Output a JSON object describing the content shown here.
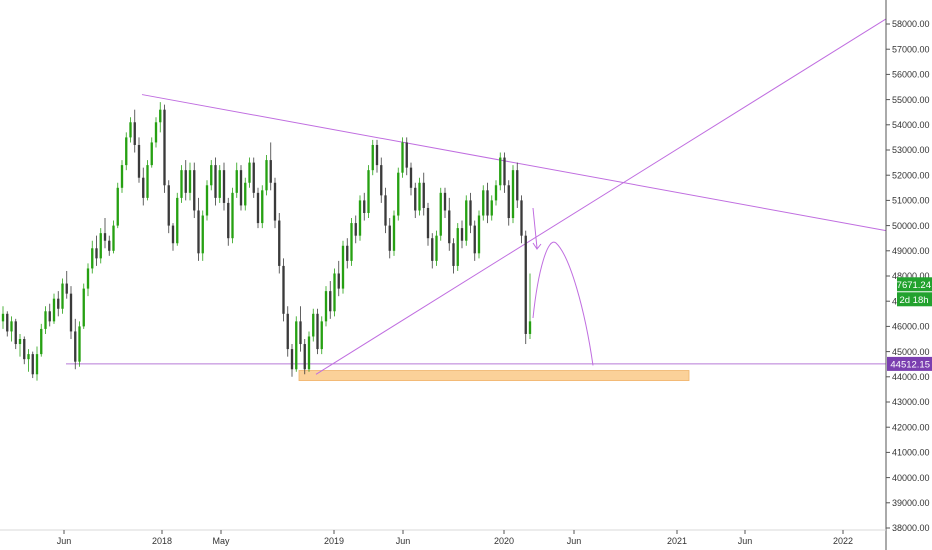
{
  "colors": {
    "up": "#26a012",
    "down": "#3a3a3a",
    "trendline": "#c06ee0",
    "support_line": "#b77ad8",
    "support_zone": "#fbd199",
    "support_zone_border": "#f1b46b",
    "last_price_bg": "#22a22e",
    "level_bg": "#7b3fb0",
    "axis_text": "#333333",
    "axis_line": "#555555"
  },
  "chart_data": {
    "type": "candlestick",
    "x_axis": {
      "ticks": [
        "Jun",
        "2018",
        "May",
        "2019",
        "Jun",
        "2020",
        "Jun",
        "2021",
        "Jun",
        "2022"
      ]
    },
    "y_axis": {
      "range": [
        37800,
        58600
      ],
      "ticks": [
        "38000.00",
        "39000.00",
        "40000.00",
        "41000.00",
        "42000.00",
        "43000.00",
        "44000.00",
        "45000.00",
        "46000.00",
        "47000.00",
        "48000.00",
        "49000.00",
        "50000.00",
        "51000.00",
        "52000.00",
        "53000.00",
        "54000.00",
        "55000.00",
        "56000.00",
        "57000.00",
        "58000.00"
      ]
    },
    "price_tags": {
      "last_price": "47671.24",
      "countdown": "2d 18h",
      "level": "44512.15"
    },
    "annotations": {
      "descending_trendline": [
        55200,
        49800
      ],
      "ascending_trendline": [
        44100,
        58200
      ],
      "horizontal_support": 44512.15,
      "support_zone": [
        43850,
        44250
      ],
      "projected_path": [
        49300,
        44450
      ]
    },
    "candles": [
      [
        46200,
        46800,
        45900,
        46500
      ],
      [
        46500,
        46600,
        45600,
        45800
      ],
      [
        45800,
        46400,
        45400,
        46200
      ],
      [
        46200,
        46300,
        45100,
        45300
      ],
      [
        45300,
        45700,
        44800,
        45500
      ],
      [
        45500,
        45600,
        44500,
        44700
      ],
      [
        44700,
        45100,
        44200,
        44900
      ],
      [
        44900,
        45000,
        43950,
        44100
      ],
      [
        44100,
        45200,
        43850,
        44900
      ],
      [
        44900,
        46100,
        44800,
        45900
      ],
      [
        45900,
        46800,
        45700,
        46600
      ],
      [
        46600,
        46900,
        46000,
        46200
      ],
      [
        46200,
        47300,
        46100,
        47100
      ],
      [
        47100,
        47400,
        46400,
        46700
      ],
      [
        46700,
        47900,
        46500,
        47700
      ],
      [
        47700,
        48200,
        47100,
        47300
      ],
      [
        47300,
        47600,
        45500,
        45800
      ],
      [
        45800,
        46300,
        44300,
        44600
      ],
      [
        44600,
        46200,
        44400,
        46000
      ],
      [
        46000,
        47700,
        45900,
        47500
      ],
      [
        47500,
        48500,
        47200,
        48300
      ],
      [
        48300,
        49400,
        48100,
        49100
      ],
      [
        49100,
        49600,
        48400,
        48700
      ],
      [
        48700,
        49900,
        48500,
        49700
      ],
      [
        49700,
        50300,
        49100,
        49400
      ],
      [
        49400,
        49600,
        48800,
        49000
      ],
      [
        49000,
        50200,
        48900,
        50000
      ],
      [
        50000,
        51700,
        49900,
        51500
      ],
      [
        51500,
        52600,
        51300,
        52400
      ],
      [
        52400,
        53700,
        52200,
        53500
      ],
      [
        53500,
        54300,
        53300,
        54100
      ],
      [
        54100,
        54600,
        52900,
        53200
      ],
      [
        53200,
        53500,
        51700,
        51900
      ],
      [
        51900,
        52300,
        50800,
        51100
      ],
      [
        51100,
        52600,
        51000,
        52400
      ],
      [
        52400,
        53500,
        52300,
        53300
      ],
      [
        53300,
        54300,
        53100,
        54100
      ],
      [
        54100,
        54900,
        53700,
        54600
      ],
      [
        54600,
        54800,
        51300,
        51600
      ],
      [
        51600,
        51800,
        49700,
        50000
      ],
      [
        50000,
        50100,
        49000,
        49300
      ],
      [
        49300,
        51300,
        49200,
        51100
      ],
      [
        51100,
        52400,
        50900,
        52200
      ],
      [
        52200,
        52600,
        51000,
        51300
      ],
      [
        51300,
        52500,
        51000,
        52200
      ],
      [
        52200,
        52500,
        50300,
        50600
      ],
      [
        50600,
        51100,
        48600,
        48900
      ],
      [
        48900,
        50600,
        48600,
        50400
      ],
      [
        50400,
        51800,
        50200,
        51600
      ],
      [
        51600,
        52600,
        51400,
        52400
      ],
      [
        52400,
        52700,
        50800,
        51100
      ],
      [
        51100,
        52400,
        50900,
        52200
      ],
      [
        52200,
        52500,
        50600,
        50900
      ],
      [
        50900,
        51100,
        49200,
        49500
      ],
      [
        49500,
        51500,
        49300,
        51300
      ],
      [
        51300,
        52500,
        51100,
        52200
      ],
      [
        52200,
        52400,
        50600,
        50800
      ],
      [
        50800,
        51900,
        50600,
        51700
      ],
      [
        51700,
        52700,
        51500,
        52500
      ],
      [
        52500,
        52700,
        51100,
        51300
      ],
      [
        51300,
        51500,
        49900,
        50100
      ],
      [
        50100,
        51600,
        49900,
        51400
      ],
      [
        51400,
        52800,
        51200,
        52600
      ],
      [
        52600,
        53300,
        51400,
        51700
      ],
      [
        51700,
        51900,
        49900,
        50200
      ],
      [
        50200,
        50500,
        48100,
        48400
      ],
      [
        48400,
        48700,
        46200,
        46500
      ],
      [
        46500,
        46800,
        44800,
        45100
      ],
      [
        45100,
        45300,
        44000,
        44300
      ],
      [
        44300,
        46400,
        44200,
        46200
      ],
      [
        46200,
        46800,
        45000,
        45300
      ],
      [
        45300,
        45500,
        44100,
        44300
      ],
      [
        44300,
        45800,
        44200,
        45600
      ],
      [
        45600,
        46700,
        45400,
        46500
      ],
      [
        46500,
        46700,
        44900,
        45100
      ],
      [
        45100,
        46400,
        44900,
        46200
      ],
      [
        46200,
        47600,
        46000,
        47400
      ],
      [
        47400,
        47800,
        46300,
        46600
      ],
      [
        46600,
        48300,
        46400,
        48100
      ],
      [
        48100,
        48600,
        47200,
        47500
      ],
      [
        47500,
        49400,
        47300,
        49200
      ],
      [
        49200,
        49500,
        48300,
        48600
      ],
      [
        48600,
        50300,
        48400,
        50100
      ],
      [
        50100,
        50400,
        49300,
        49600
      ],
      [
        49600,
        51200,
        49400,
        51000
      ],
      [
        51000,
        51300,
        50200,
        50500
      ],
      [
        50500,
        52400,
        50300,
        52200
      ],
      [
        52200,
        53400,
        52000,
        53200
      ],
      [
        53200,
        53400,
        52100,
        52400
      ],
      [
        52400,
        52700,
        50900,
        51200
      ],
      [
        51200,
        51500,
        49700,
        50000
      ],
      [
        50000,
        50300,
        48700,
        49000
      ],
      [
        49000,
        50600,
        48800,
        50400
      ],
      [
        50400,
        52300,
        50200,
        52100
      ],
      [
        52100,
        53500,
        51900,
        53300
      ],
      [
        53300,
        53500,
        52000,
        52300
      ],
      [
        52300,
        52500,
        51200,
        51500
      ],
      [
        51500,
        51700,
        50300,
        50600
      ],
      [
        50600,
        51900,
        50400,
        51700
      ],
      [
        51700,
        52100,
        50400,
        50700
      ],
      [
        50700,
        50900,
        49200,
        49500
      ],
      [
        49500,
        49700,
        48300,
        48600
      ],
      [
        48600,
        49800,
        48400,
        49600
      ],
      [
        49600,
        51500,
        49400,
        51300
      ],
      [
        51300,
        51500,
        50300,
        50600
      ],
      [
        50600,
        51100,
        49000,
        49300
      ],
      [
        49300,
        49500,
        48100,
        48400
      ],
      [
        48400,
        50100,
        48200,
        49900
      ],
      [
        49900,
        50200,
        49100,
        49400
      ],
      [
        49400,
        51200,
        49200,
        51000
      ],
      [
        51000,
        51300,
        49700,
        50000
      ],
      [
        50000,
        50200,
        48600,
        48900
      ],
      [
        48900,
        50600,
        48700,
        50400
      ],
      [
        50400,
        51600,
        50200,
        51400
      ],
      [
        51400,
        51700,
        50100,
        50400
      ],
      [
        50400,
        51200,
        50200,
        51000
      ],
      [
        51000,
        51800,
        50800,
        51600
      ],
      [
        51600,
        52900,
        51400,
        52700
      ],
      [
        52700,
        52900,
        51300,
        51600
      ],
      [
        51600,
        51800,
        50000,
        50300
      ],
      [
        50300,
        52400,
        50100,
        52200
      ],
      [
        52200,
        52500,
        50700,
        51000
      ],
      [
        51000,
        51200,
        49300,
        49600
      ],
      [
        49600,
        49800,
        45300,
        45700
      ],
      [
        45700,
        48100,
        45500,
        46200
      ]
    ]
  }
}
